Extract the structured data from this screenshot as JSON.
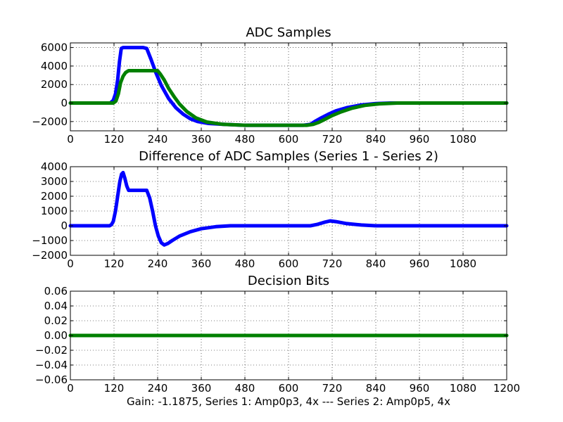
{
  "caption": "Gain: -1.1875, Series 1: Amp0p3, 4x --- Series 2: Amp0p5, 4x",
  "colors": {
    "series1": "#0000ff",
    "series2": "#008000",
    "text": "#000000"
  },
  "chart_data": [
    {
      "type": "line",
      "title": "ADC Samples",
      "xlim": [
        0,
        1200
      ],
      "ylim": [
        -3000,
        6500
      ],
      "xticks": [
        0,
        120,
        240,
        360,
        480,
        600,
        720,
        840,
        960,
        1080
      ],
      "xtick_labels": [
        "0",
        "120",
        "240",
        "360",
        "480",
        "600",
        "720",
        "840",
        "960",
        "1080"
      ],
      "yticks": [
        -2000,
        0,
        2000,
        4000,
        6000
      ],
      "ytick_labels": [
        "−2000",
        "0",
        "2000",
        "4000",
        "6000"
      ],
      "grid": true,
      "series": [
        {
          "name": "Series 1",
          "color": "#0000ff",
          "x": [
            0,
            110,
            118,
            124,
            130,
            135,
            140,
            145,
            200,
            210,
            222,
            235,
            250,
            270,
            290,
            310,
            330,
            350,
            380,
            420,
            480,
            640,
            660,
            672,
            690,
            710,
            730,
            760,
            800,
            840,
            880,
            960,
            1200
          ],
          "y": [
            0,
            0,
            300,
            1000,
            2500,
            4500,
            5900,
            6000,
            6000,
            5900,
            4700,
            3300,
            1900,
            500,
            -500,
            -1200,
            -1700,
            -2000,
            -2200,
            -2300,
            -2400,
            -2400,
            -2300,
            -2000,
            -1600,
            -1200,
            -850,
            -500,
            -200,
            -50,
            0,
            0,
            0
          ]
        },
        {
          "name": "Series 2",
          "color": "#008000",
          "x": [
            0,
            118,
            125,
            132,
            138,
            145,
            152,
            160,
            240,
            248,
            258,
            270,
            285,
            300,
            320,
            345,
            375,
            420,
            480,
            650,
            668,
            682,
            700,
            720,
            745,
            775,
            810,
            850,
            900,
            960,
            1200
          ],
          "y": [
            0,
            0,
            200,
            1000,
            2200,
            2900,
            3300,
            3500,
            3500,
            3100,
            2500,
            1600,
            700,
            -100,
            -900,
            -1600,
            -2050,
            -2300,
            -2400,
            -2400,
            -2300,
            -2100,
            -1750,
            -1350,
            -950,
            -550,
            -250,
            -80,
            0,
            0,
            0
          ]
        }
      ]
    },
    {
      "type": "line",
      "title": "Difference of ADC Samples (Series 1 - Series 2)",
      "xlim": [
        0,
        1200
      ],
      "ylim": [
        -2000,
        4000
      ],
      "xticks": [
        0,
        120,
        240,
        360,
        480,
        600,
        720,
        840,
        960,
        1080
      ],
      "xtick_labels": [
        "0",
        "120",
        "240",
        "360",
        "480",
        "600",
        "720",
        "840",
        "960",
        "1080"
      ],
      "yticks": [
        -2000,
        -1000,
        0,
        1000,
        2000,
        3000,
        4000
      ],
      "ytick_labels": [
        "−2000",
        "−1000",
        "0",
        "1000",
        "2000",
        "3000",
        "4000"
      ],
      "grid": true,
      "series": [
        {
          "name": "Series 1 - Series 2",
          "color": "#0000ff",
          "x": [
            0,
            108,
            113,
            118,
            124,
            130,
            136,
            141,
            145,
            150,
            155,
            160,
            210,
            218,
            226,
            234,
            242,
            250,
            258,
            268,
            280,
            300,
            330,
            360,
            400,
            440,
            660,
            680,
            700,
            715,
            730,
            760,
            800,
            840,
            1200
          ],
          "y": [
            0,
            0,
            80,
            300,
            1000,
            2000,
            3000,
            3500,
            3600,
            3200,
            2700,
            2400,
            2400,
            1900,
            1000,
            0,
            -700,
            -1150,
            -1300,
            -1200,
            -1000,
            -700,
            -400,
            -200,
            -60,
            0,
            0,
            100,
            250,
            330,
            280,
            150,
            50,
            0,
            0
          ]
        }
      ]
    },
    {
      "type": "line",
      "title": "Decision Bits",
      "xlim": [
        0,
        1200
      ],
      "ylim": [
        -0.06,
        0.06
      ],
      "xticks": [
        0,
        120,
        240,
        360,
        480,
        600,
        720,
        840,
        960,
        1080,
        1200
      ],
      "xtick_labels": [
        "0",
        "120",
        "240",
        "360",
        "480",
        "600",
        "720",
        "840",
        "960",
        "1080",
        "1200"
      ],
      "yticks": [
        -0.06,
        -0.04,
        -0.02,
        0,
        0.02,
        0.04,
        0.06
      ],
      "ytick_labels": [
        "−0.06",
        "−0.04",
        "−0.02",
        "0.00",
        "0.02",
        "0.04",
        "0.06"
      ],
      "grid": true,
      "series": [
        {
          "name": "Decision Bits",
          "color": "#008000",
          "x": [
            0,
            1200
          ],
          "y": [
            0,
            0
          ]
        }
      ]
    }
  ]
}
